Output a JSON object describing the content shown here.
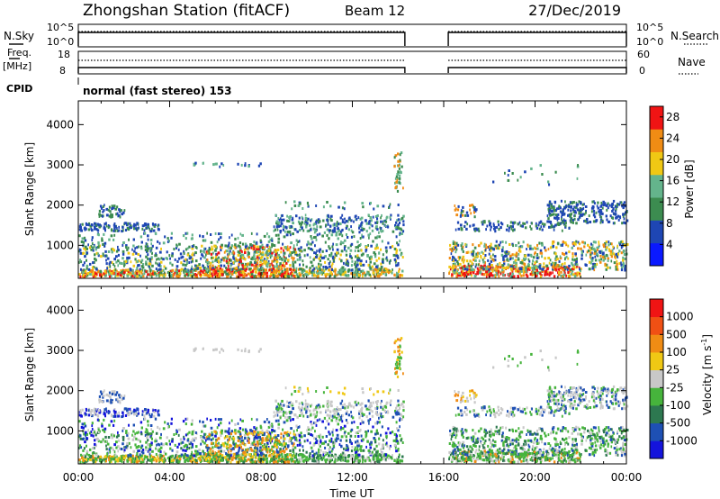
{
  "header": {
    "station": "Zhongshan Station (fitACF)",
    "beam": "Beam 12",
    "date": "27/Dec/2019",
    "mode": "normal (fast stereo) 153"
  },
  "labels": {
    "nsky": "N.Sky",
    "nsearch": "N.Search",
    "freq": "Freq.",
    "mhz": "[MHz]",
    "nave": "Nave",
    "cpid": "CPID",
    "x_axis_title": "Time UT"
  },
  "chart_data": [
    {
      "type": "line",
      "name": "noise",
      "left_ticks": [
        "10^5",
        "10^0"
      ],
      "right_ticks": [
        "10^5",
        "10^0"
      ],
      "data_gaps_hours": [
        [
          14.3,
          16.2
        ]
      ]
    },
    {
      "type": "line",
      "name": "frequency-nave",
      "left_ticks": [
        "18",
        "8"
      ],
      "right_ticks": [
        "60",
        "0"
      ],
      "data_gaps_hours": [
        [
          14.3,
          16.2
        ]
      ]
    },
    {
      "type": "heatmap",
      "name": "power",
      "ylabel": "Slant Range [km]",
      "xlabel": "Time UT",
      "x_tick_labels": [
        "00:00",
        "04:00",
        "08:00",
        "12:00",
        "16:00",
        "20:00",
        "00:00"
      ],
      "xlim_hours": [
        0,
        24
      ],
      "ylim_km": [
        180,
        4590
      ],
      "y_ticks": [
        1000,
        2000,
        3000,
        4000
      ],
      "colorbar": {
        "label": "Power [dB]",
        "ticks": [
          "4",
          "8",
          "12",
          "16",
          "20",
          "24",
          "28"
        ],
        "range": [
          0,
          30
        ],
        "colors": [
          "#0a19ff",
          "#1e46b4",
          "#3c8c50",
          "#64b48c",
          "#f0c814",
          "#f08c14",
          "#f01414"
        ]
      },
      "data_gaps_hours": [
        [
          14.3,
          16.2
        ]
      ]
    },
    {
      "type": "heatmap",
      "name": "velocity",
      "ylabel": "Slant Range [km]",
      "xlabel": "Time UT",
      "x_tick_labels": [
        "00:00",
        "04:00",
        "08:00",
        "12:00",
        "16:00",
        "20:00",
        "00:00"
      ],
      "xlim_hours": [
        0,
        24
      ],
      "ylim_km": [
        180,
        4590
      ],
      "y_ticks": [
        1000,
        2000,
        3000,
        4000
      ],
      "colorbar": {
        "label": "Velocity [m s^-1]",
        "ticks": [
          "1000",
          "500",
          "100",
          "25",
          "-25",
          "-100",
          "-500",
          "-1000"
        ],
        "colors": [
          "#1414dc",
          "#1e50b4",
          "#2d7850",
          "#46b43c",
          "#c8c8c8",
          "#f0c814",
          "#f08c14",
          "#f05014",
          "#f01414"
        ]
      },
      "data_gaps_hours": [
        [
          14.3,
          16.2
        ]
      ]
    }
  ]
}
